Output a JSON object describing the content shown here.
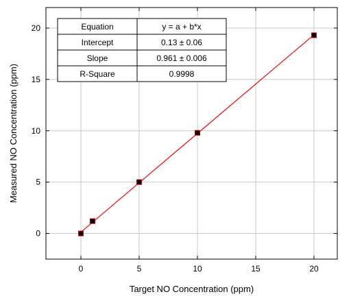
{
  "chart_data": {
    "type": "scatter",
    "xlabel": "Target NO Concentration (ppm)",
    "ylabel": "Measured NO Concentration (ppm)",
    "xlim": [
      -3,
      22
    ],
    "ylim": [
      -2.5,
      22
    ],
    "x_ticks": [
      0,
      5,
      10,
      15,
      20
    ],
    "y_ticks": [
      0,
      5,
      10,
      15,
      20
    ],
    "grid": true,
    "series": [
      {
        "x": [
          0,
          1,
          5,
          10,
          20
        ],
        "y": [
          0,
          1.2,
          5.0,
          9.8,
          19.3
        ],
        "marker": "square",
        "color": "#000000",
        "marker_edge_color": "#cc0000"
      }
    ],
    "fit": {
      "x_range": [
        0,
        20
      ],
      "intercept": 0.13,
      "slope": 0.961,
      "color": "#ff0000"
    },
    "fit_table": [
      [
        "Equation",
        "y = a + b*x"
      ],
      [
        "Intercept",
        "0.13 ± 0.06"
      ],
      [
        "Slope",
        "0.961 ± 0.006"
      ],
      [
        "R-Square",
        "0.9998"
      ]
    ]
  }
}
